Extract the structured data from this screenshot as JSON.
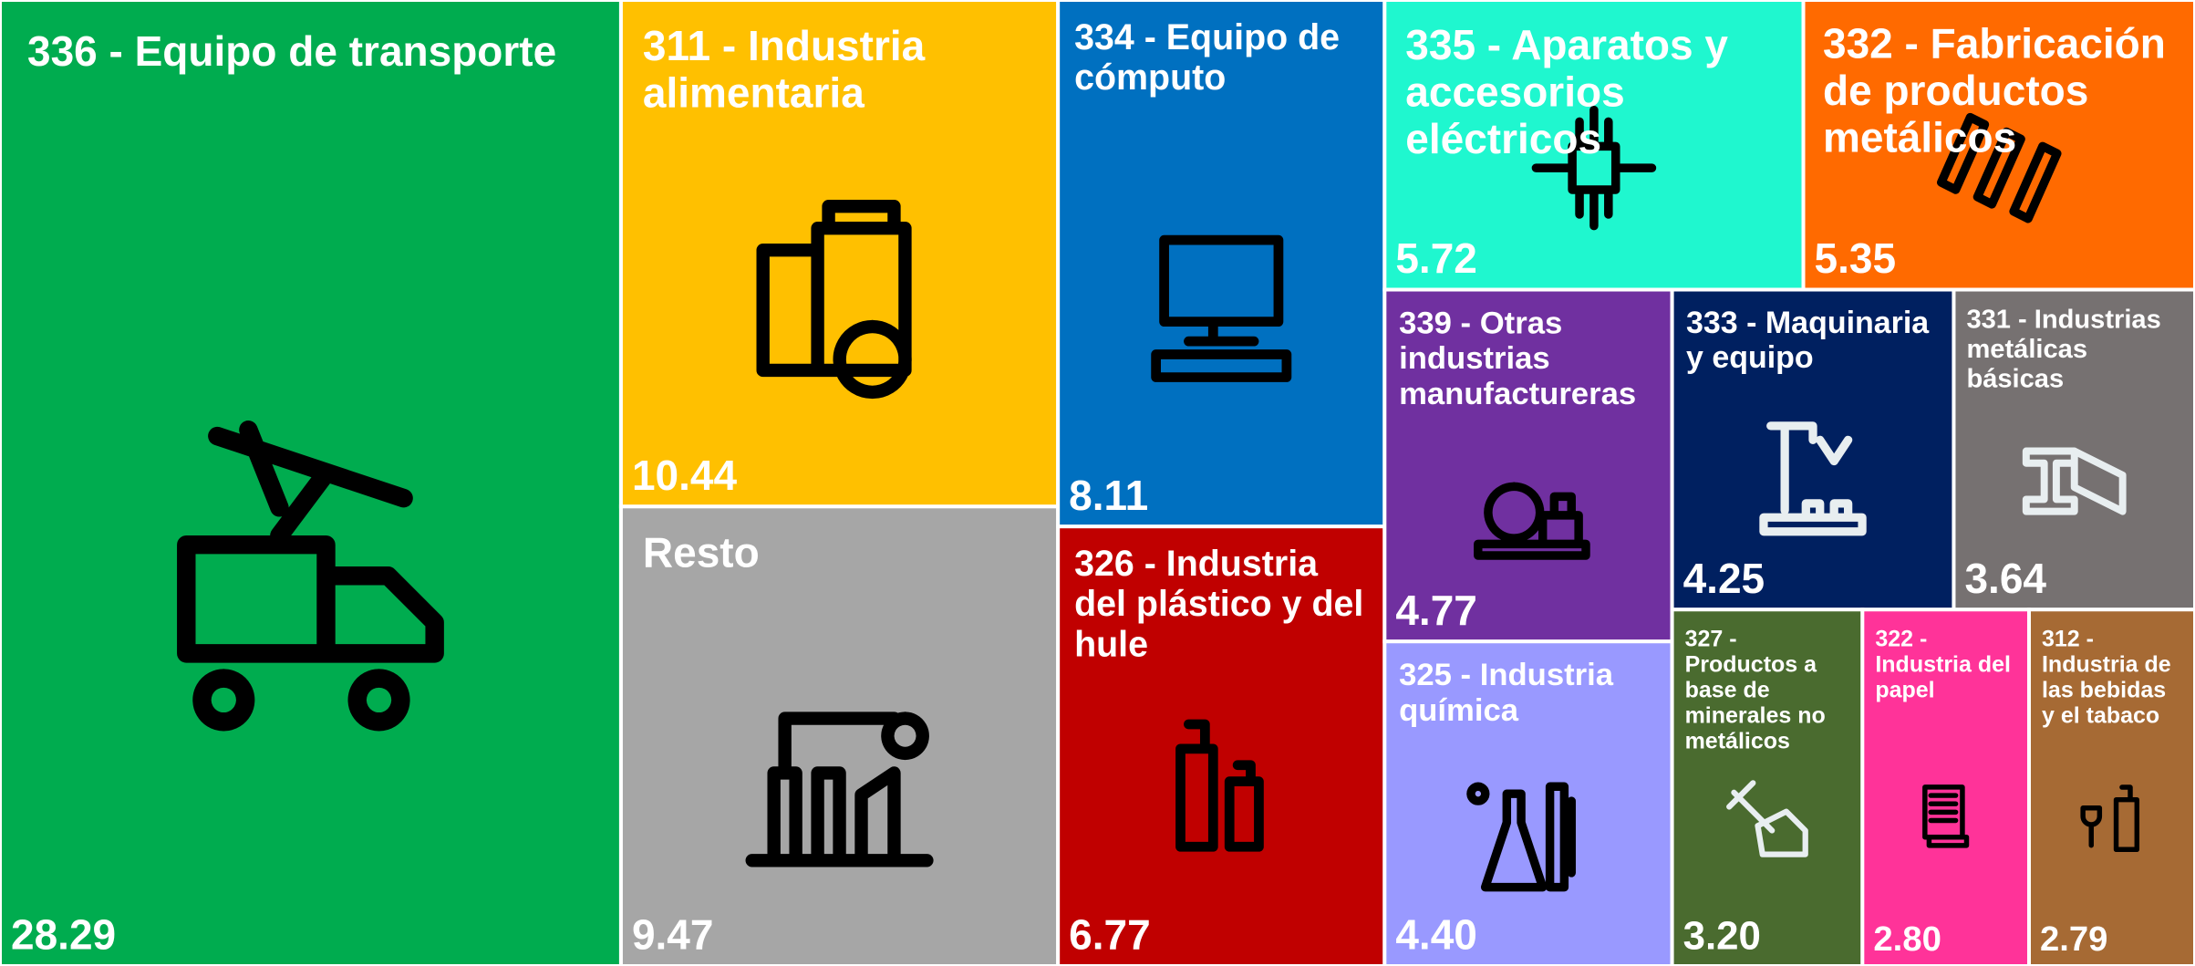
{
  "chart_data": {
    "type": "treemap",
    "categories": [
      "336 - Equipo de transporte",
      "311 - Industria alimentaria",
      "Resto",
      "334 - Equipo de cómputo",
      "326 - Industria del plástico y del hule",
      "335 - Aparatos y accesorios eléctricos",
      "332 - Fabricación de productos metálicos",
      "339 - Otras industrias manufactureras",
      "325 - Industria química",
      "333 - Maquinaria y equipo",
      "331 - Industrias metálicas básicas",
      "327 - Productos a base de minerales no metálicos",
      "322 - Industria del papel",
      "312 - Industria de las bebidas y el tabaco"
    ],
    "values": [
      28.29,
      10.44,
      9.47,
      8.11,
      6.77,
      5.72,
      5.35,
      4.77,
      4.4,
      4.25,
      3.64,
      3.2,
      2.8,
      2.79
    ],
    "value_labels": [
      "28.29",
      "10.44",
      "9.47",
      "8.11",
      "6.77",
      "5.72",
      "5.35",
      "4.77",
      "4.40",
      "4.25",
      "3.64",
      "3.20",
      "2.80",
      "2.79"
    ],
    "colors": [
      "#00ac4f",
      "#ffc000",
      "#a6a6a6",
      "#0070c0",
      "#c00000",
      "#1ff7cf",
      "#ff6a00",
      "#7030a0",
      "#9999ff",
      "#002060",
      "#767171",
      "#4a6b2f",
      "#ff3399",
      "#a66a34"
    ]
  }
}
